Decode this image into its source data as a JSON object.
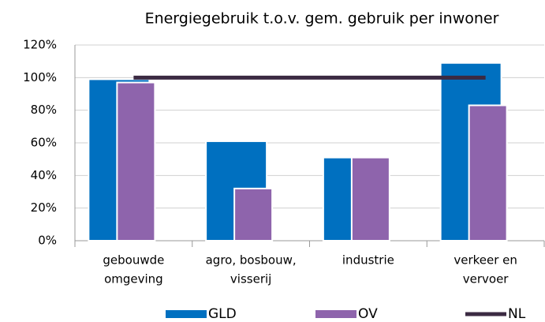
{
  "chart_data": {
    "type": "bar",
    "title": "Energiegebruik t.o.v. gem. gebruik per inwoner",
    "categories": [
      [
        "gebouwde",
        "omgeving"
      ],
      [
        "agro, bosbouw,",
        "visserij"
      ],
      [
        "industrie"
      ],
      [
        "verkeer en",
        "vervoer"
      ]
    ],
    "series": [
      {
        "name": "GLD",
        "color": "#0070c0",
        "values": [
          99,
          61,
          51,
          109
        ]
      },
      {
        "name": "OV",
        "color": "#8e64ac",
        "values": [
          97,
          32,
          51,
          83
        ]
      },
      {
        "name": "NL",
        "type": "line",
        "color": "#3b2a42",
        "values": [
          100,
          100,
          100,
          100
        ]
      }
    ],
    "ylim": [
      0,
      120
    ],
    "yticks": [
      {
        "value": 0,
        "label": "0%"
      },
      {
        "value": 20,
        "label": "20%"
      },
      {
        "value": 40,
        "label": "40%"
      },
      {
        "value": 60,
        "label": "60%"
      },
      {
        "value": 80,
        "label": "80%"
      },
      {
        "value": 100,
        "label": "100%"
      },
      {
        "value": 120,
        "label": "120%"
      }
    ],
    "grid": true,
    "legend": "bottom"
  }
}
